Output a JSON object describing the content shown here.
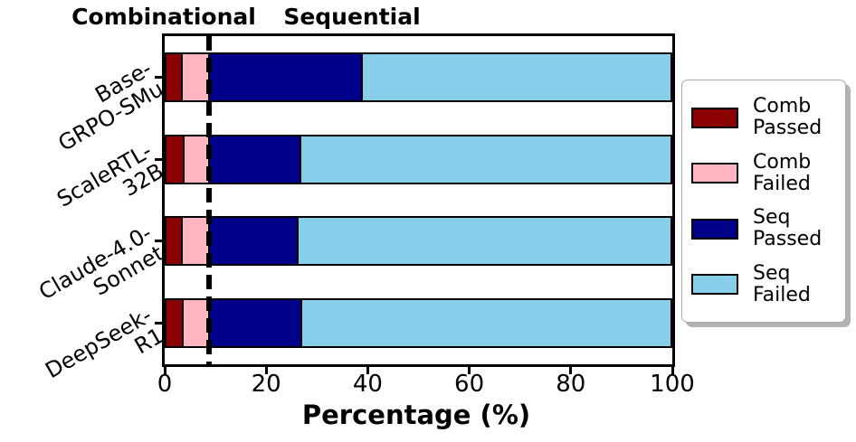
{
  "chart_data": {
    "type": "bar",
    "orientation": "horizontal",
    "stacked": true,
    "xlabel": "Percentage (%)",
    "ylabel": "",
    "xlim": [
      0,
      100
    ],
    "x_ticks": [
      0,
      20,
      40,
      60,
      80,
      100
    ],
    "grid": false,
    "categories": [
      [
        "Base-",
        "GRPO-SMu"
      ],
      [
        "ScaleRTL-",
        "32B"
      ],
      [
        "Claude-4.0-",
        "Sonnet"
      ],
      [
        "DeepSeek-",
        "R1"
      ]
    ],
    "series": [
      {
        "name": "Comb Passed",
        "color": "#8B0000",
        "values": [
          3.2,
          3.6,
          3.2,
          3.4
        ]
      },
      {
        "name": "Comb Failed",
        "color": "#FFB6C1",
        "values": [
          5.4,
          5.0,
          5.4,
          5.2
        ]
      },
      {
        "name": "Seq Passed",
        "color": "#00008B",
        "values": [
          30.4,
          18.1,
          17.6,
          18.3
        ]
      },
      {
        "name": "Seq Failed",
        "color": "#87CEEB",
        "values": [
          61.0,
          73.3,
          73.8,
          73.1
        ]
      }
    ],
    "divider_x": 8.7,
    "annotations": {
      "combinational": "Combinational",
      "sequential": "Sequential"
    },
    "legend": {
      "position": "right",
      "entries": [
        {
          "line1": "Comb",
          "line2": "Passed",
          "color": "#8B0000"
        },
        {
          "line1": "Comb",
          "line2": "Failed",
          "color": "#FFB6C1"
        },
        {
          "line1": "Seq",
          "line2": "Passed",
          "color": "#00008B"
        },
        {
          "line1": "Seq",
          "line2": "Failed",
          "color": "#87CEEB"
        }
      ]
    }
  }
}
